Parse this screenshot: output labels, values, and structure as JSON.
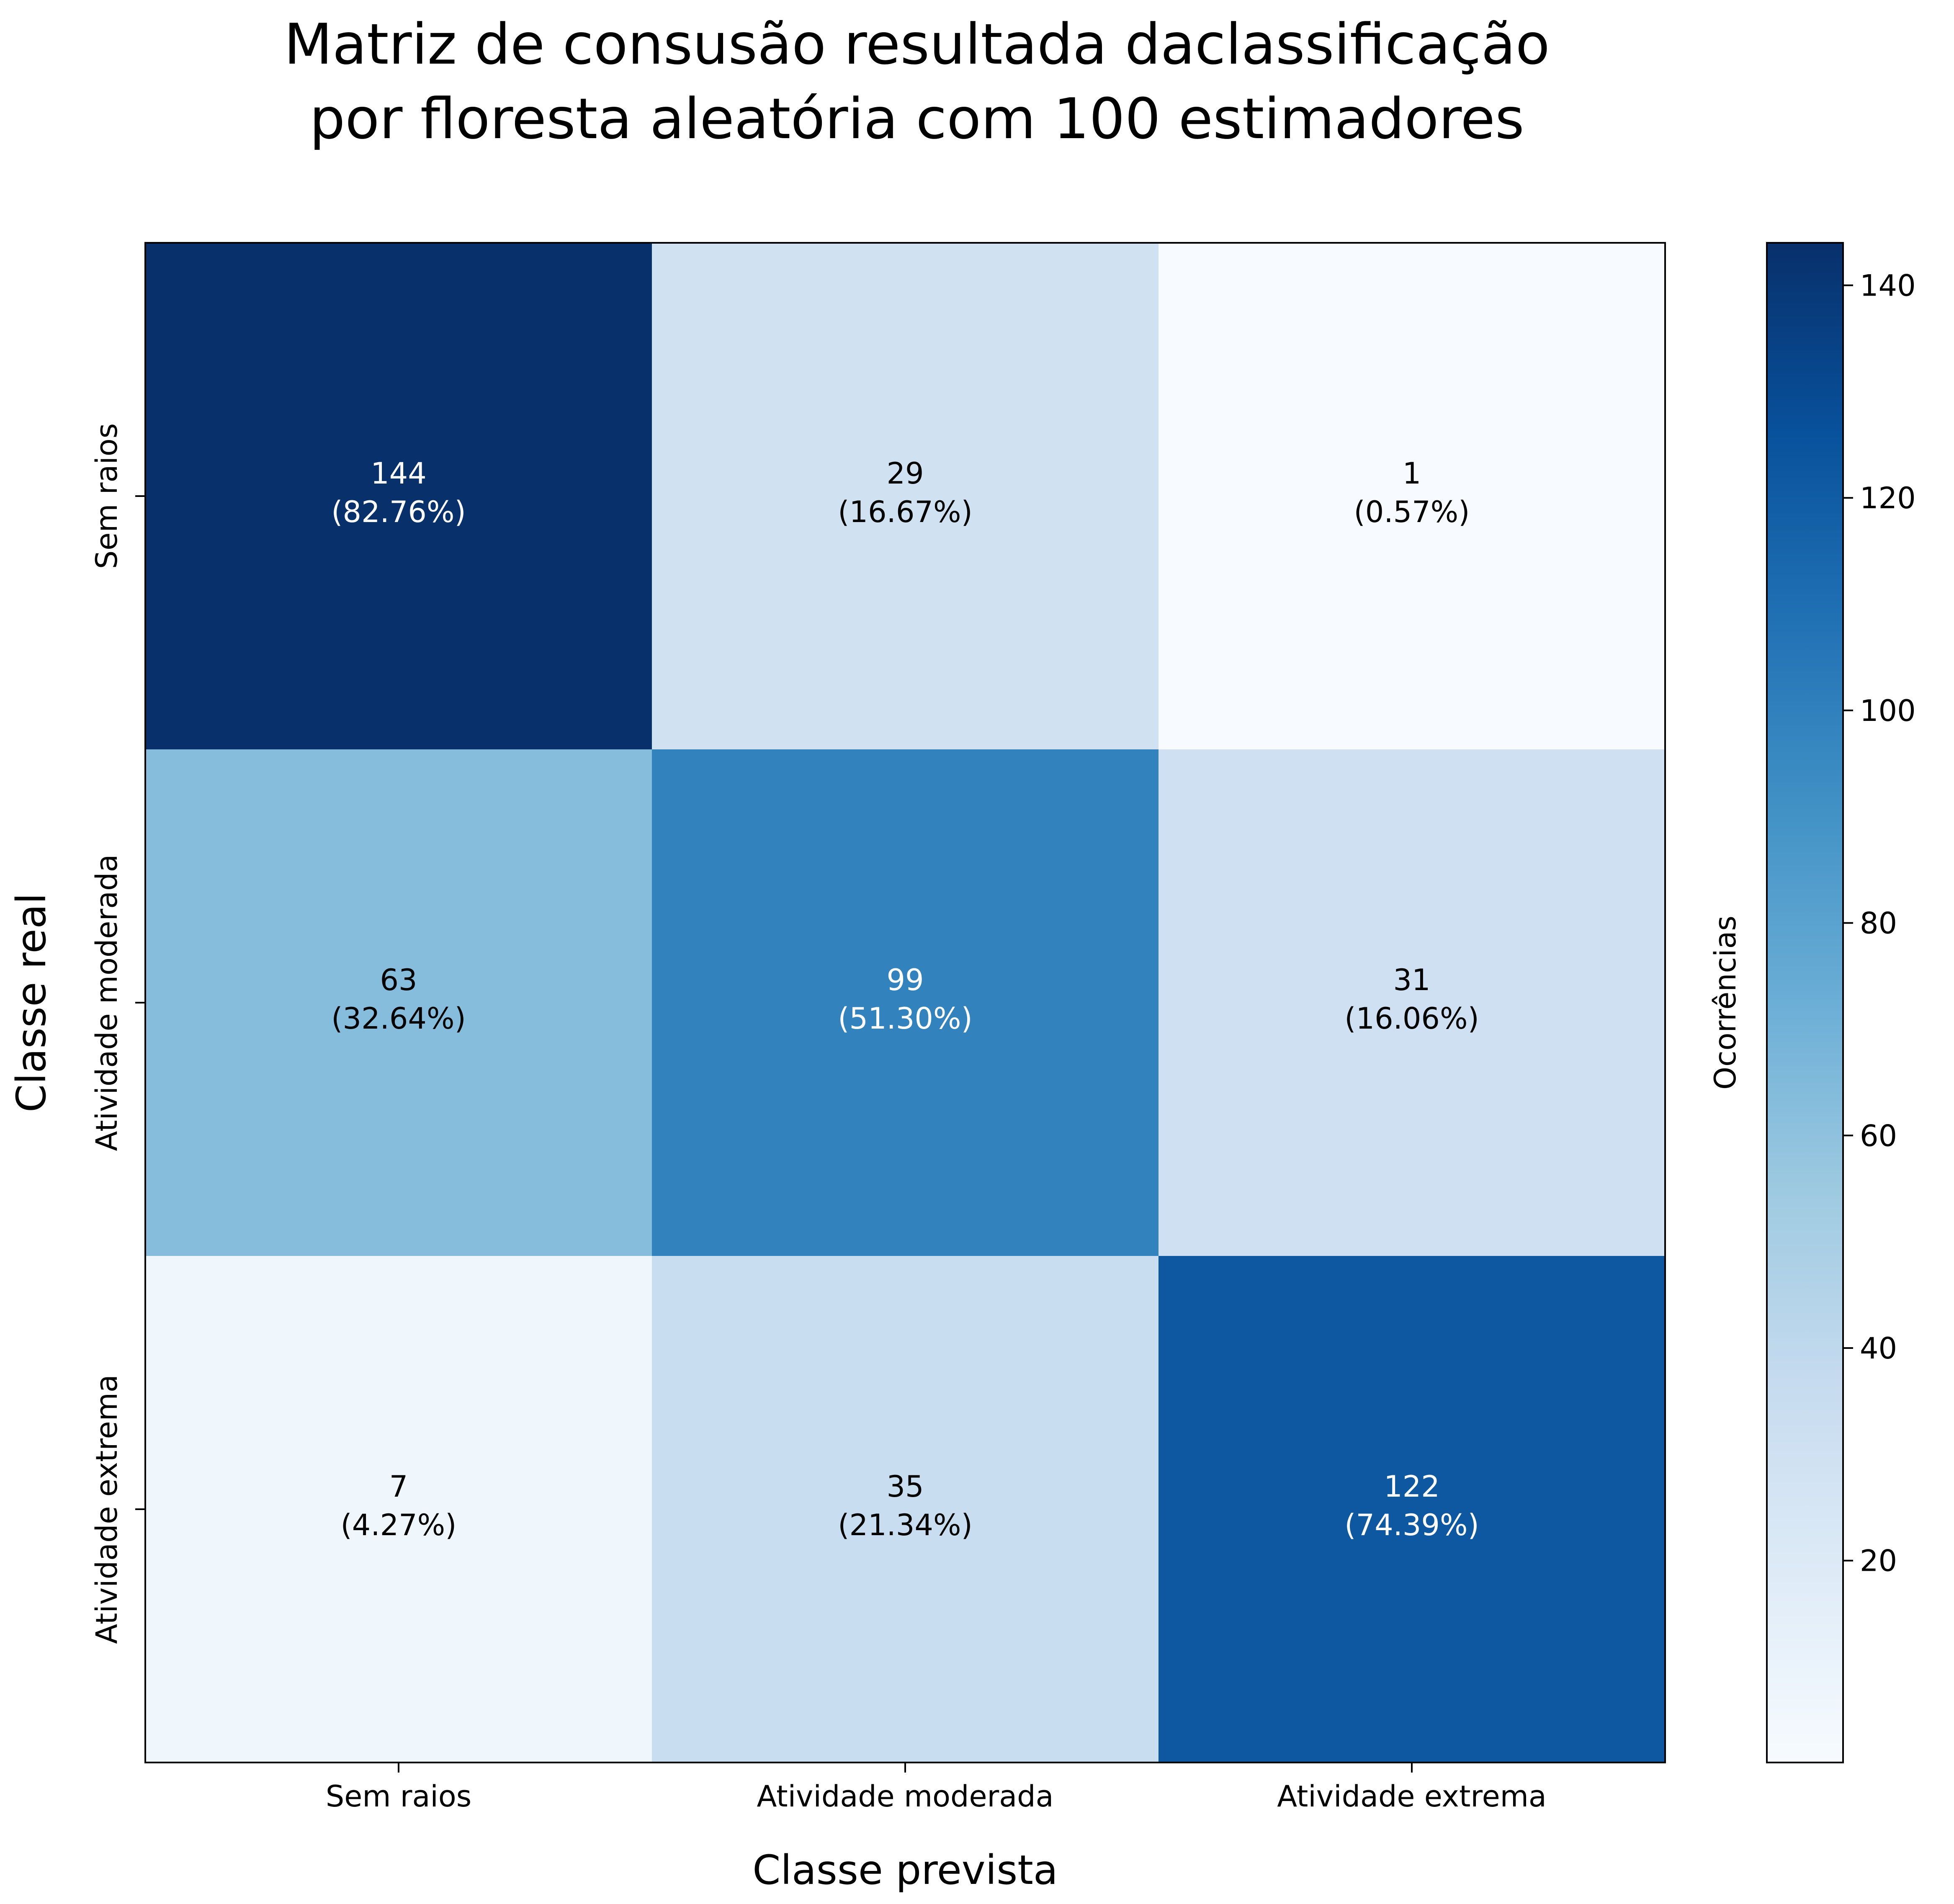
{
  "chart_data": {
    "type": "heatmap",
    "title": [
      "Matriz de consusão resultada daclassificação",
      "por floresta aleatória com 100 estimadores"
    ],
    "xlabel": "Classe prevista",
    "ylabel": "Classe real",
    "x_categories": [
      "Sem raios",
      "Atividade moderada",
      "Atividade extrema"
    ],
    "y_categories": [
      "Sem raios",
      "Atividade moderada",
      "Atividade extrema"
    ],
    "values": [
      [
        144,
        29,
        1
      ],
      [
        63,
        99,
        31
      ],
      [
        7,
        35,
        122
      ]
    ],
    "cell_labels": [
      [
        [
          "144",
          "(82.76%)"
        ],
        [
          "29",
          "(16.67%)"
        ],
        [
          "1",
          "(0.57%)"
        ]
      ],
      [
        [
          "63",
          "(32.64%)"
        ],
        [
          "99",
          "(51.30%)"
        ],
        [
          "31",
          "(16.06%)"
        ]
      ],
      [
        [
          "7",
          "(4.27%)"
        ],
        [
          "35",
          "(21.34%)"
        ],
        [
          "122",
          "(74.39%)"
        ]
      ]
    ],
    "colormap": "Blues",
    "colorbar": {
      "label": "Ocorrências",
      "range": [
        1,
        144
      ],
      "ticks": [
        20,
        40,
        60,
        80,
        100,
        120,
        140
      ]
    },
    "grid": false
  }
}
